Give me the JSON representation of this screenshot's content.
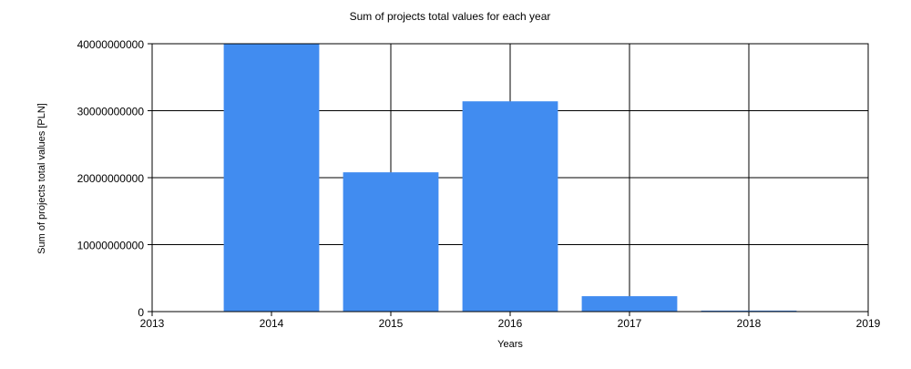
{
  "chart_data": {
    "type": "bar",
    "title": "Sum of projects total values for each year",
    "xlabel": "Years",
    "ylabel": "Sum of projects total values [PLN]",
    "x_ticks": [
      "2013",
      "2014",
      "2015",
      "2016",
      "2017",
      "2018",
      "2019"
    ],
    "y_ticks": [
      "0",
      "10000000000",
      "20000000000",
      "30000000000",
      "40000000000"
    ],
    "xlim": [
      2013,
      2019
    ],
    "ylim": [
      0,
      40000000000
    ],
    "grid": true,
    "legend": "none",
    "bar_color": "#418cf0",
    "categories": [
      "2014",
      "2015",
      "2016",
      "2017",
      "2018"
    ],
    "values": [
      40000000000,
      20800000000,
      31400000000,
      2300000000,
      150000000
    ]
  }
}
